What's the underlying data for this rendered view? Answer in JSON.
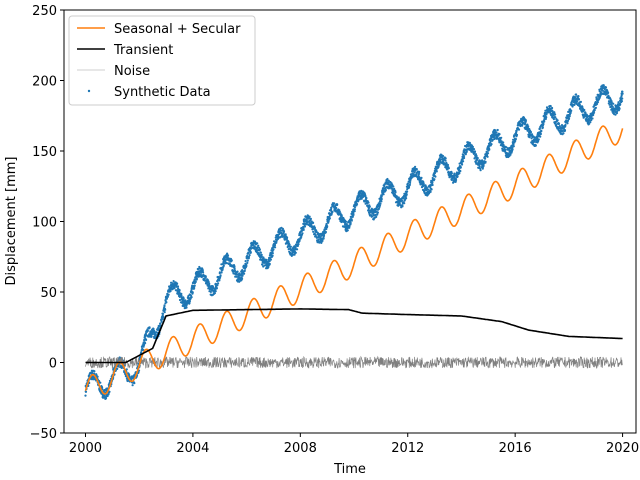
{
  "chart_data": {
    "type": "line",
    "title": "",
    "xlabel": "Time",
    "ylabel": "Displacement [mm]",
    "xlim": [
      1999.2,
      2020.5
    ],
    "ylim": [
      -50,
      250
    ],
    "xticks": [
      2000,
      2004,
      2008,
      2012,
      2016,
      2020
    ],
    "yticks": [
      -50,
      0,
      50,
      100,
      150,
      200,
      250
    ],
    "grid": false,
    "legend_position": "top-left",
    "colors": {
      "seasonal": "#ff7f0e",
      "transient": "#000000",
      "noise": "#808080",
      "data": "#1f77b4"
    },
    "series": [
      {
        "name": "Seasonal + Secular",
        "key": "seasonal",
        "x": [
          2000,
          2002,
          2004,
          2006,
          2008,
          2010,
          2012,
          2014,
          2016,
          2018,
          2020
        ],
        "y": [
          -20,
          -2,
          16,
          34,
          52,
          70,
          90,
          108,
          126,
          146,
          166
        ],
        "seasonal_amplitude": 9
      },
      {
        "name": "Transient",
        "key": "transient",
        "x": [
          2000,
          2001.5,
          2002.5,
          2003,
          2004,
          2008,
          2009.8,
          2010.3,
          2012,
          2014,
          2015.5,
          2016.5,
          2018,
          2020
        ],
        "y": [
          0,
          0,
          10,
          33,
          37,
          38,
          37.5,
          35,
          34,
          33,
          29,
          23,
          18.5,
          17
        ]
      },
      {
        "name": "Noise",
        "key": "noise",
        "x": [
          2000,
          2020
        ],
        "y": [
          0,
          0
        ],
        "noise_amplitude": 4
      },
      {
        "name": "Synthetic Data",
        "key": "data",
        "x": [
          2000,
          2002,
          2003,
          2004,
          2006,
          2008,
          2010,
          2012,
          2014,
          2016,
          2018,
          2020
        ],
        "y": [
          -20,
          -2,
          44,
          53,
          72,
          90,
          108,
          124,
          142,
          160,
          176,
          190
        ],
        "seasonal_amplitude": 9
      }
    ]
  }
}
